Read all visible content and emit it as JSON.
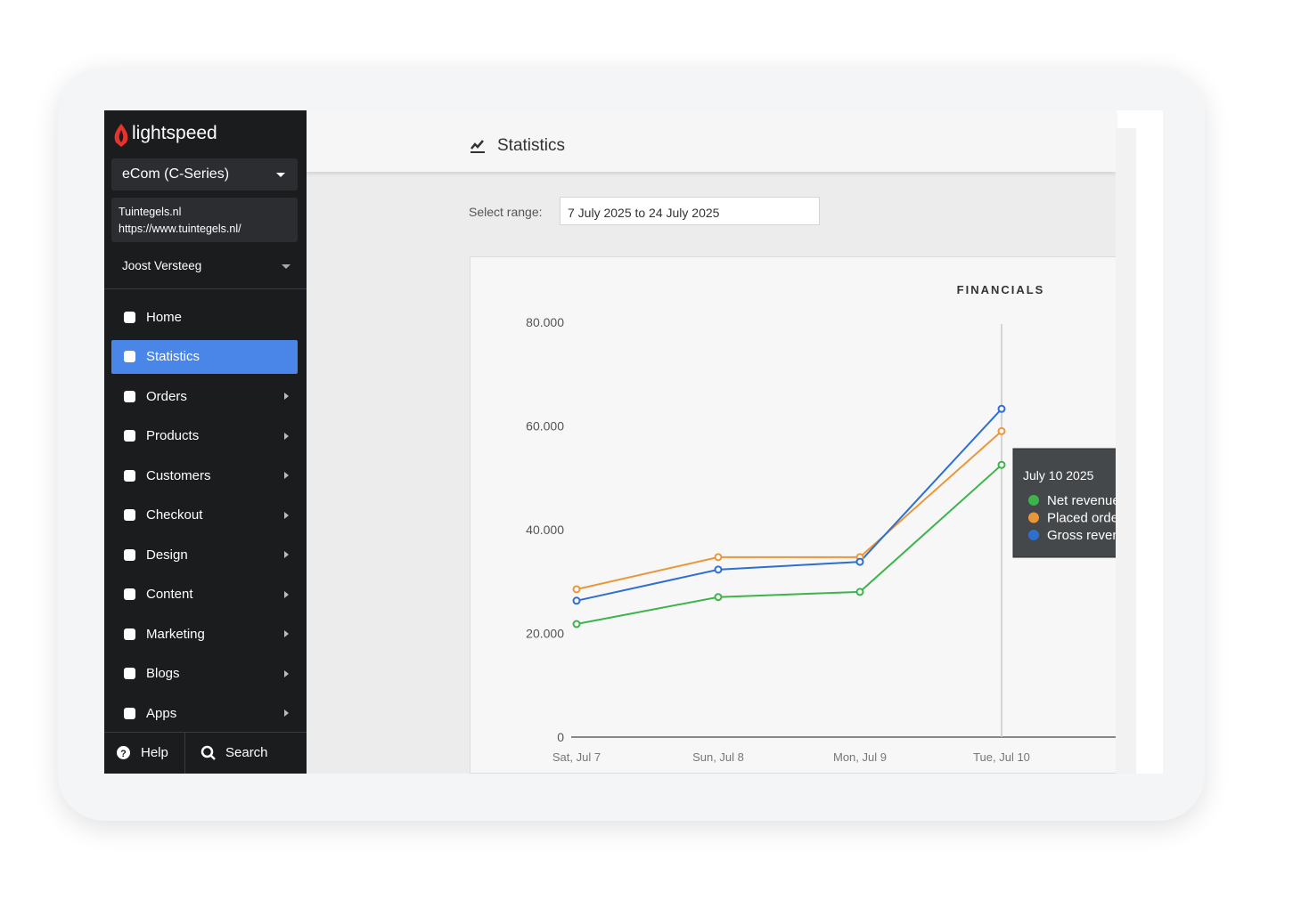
{
  "sidebar": {
    "brand": "lightspeed",
    "shop_selector": "eCom (C-Series)",
    "store": {
      "name": "Tuintegels.nl",
      "url": "https://www.tuintegels.nl/"
    },
    "user": "Joost Versteeg",
    "nav": [
      "Home",
      "Statistics",
      "Orders",
      "Products",
      "Customers",
      "Checkout",
      "Design",
      "Content",
      "Marketing",
      "Blogs",
      "Apps"
    ],
    "active_nav_index": 1,
    "footer": [
      "Help",
      "Search"
    ]
  },
  "header": {
    "title": "Statistics"
  },
  "range": {
    "label": "Select range:",
    "value": "7 July 2025 to 24 July 2025"
  },
  "chart_data": {
    "type": "line",
    "title": "FINANCIALS",
    "categories": [
      "Sat, Jul 7",
      "Sun, Jul 8",
      "Mon, Jul 9",
      "Tue, Jul 10"
    ],
    "series": [
      {
        "name": "Net revenue",
        "color": "#3cb44b",
        "values": [
          21800,
          27000,
          28000,
          52500
        ]
      },
      {
        "name": "Placed orders",
        "color": "#e8973a",
        "values": [
          28500,
          34700,
          34700,
          59000
        ]
      },
      {
        "name": "Gross revenue",
        "color": "#2f6fd0",
        "values": [
          26300,
          32300,
          33800,
          63300
        ]
      }
    ],
    "ylim": [
      0,
      80000
    ],
    "yticks": [
      0,
      {
        "value": 20000,
        "label": "20.000"
      },
      {
        "value": 40000,
        "label": "40.000"
      },
      {
        "value": 60000,
        "label": "60.000"
      },
      {
        "value": 80000,
        "label": "80.000"
      }
    ],
    "tooltip": {
      "title": "July 10 2025",
      "index": 3
    }
  }
}
